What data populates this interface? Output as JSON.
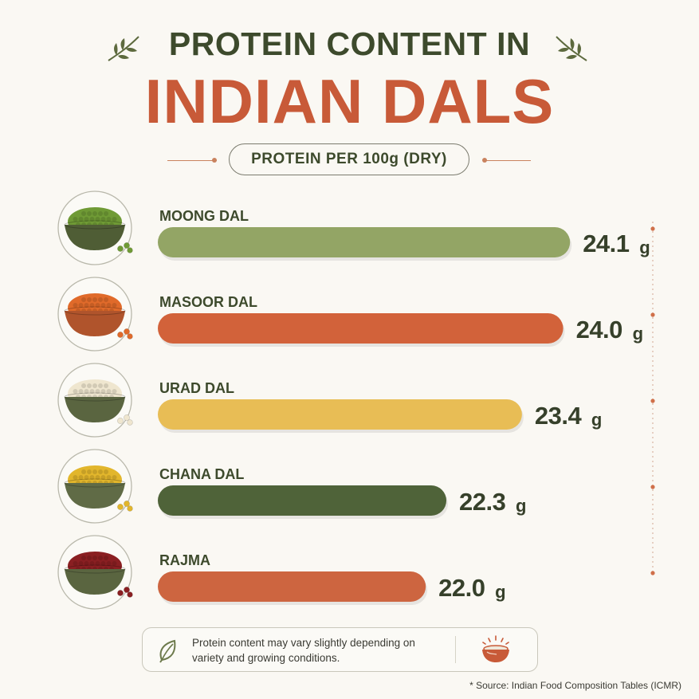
{
  "title_line1": "PROTEIN CONTENT IN",
  "title_line2": "INDIAN DALS",
  "subtitle": "PROTEIN PER 100g (DRY)",
  "chart_data": {
    "type": "bar",
    "orientation": "horizontal",
    "unit": "g",
    "categories": [
      "MOONG DAL",
      "MASOOR DAL",
      "URAD DAL",
      "CHANA DAL",
      "RAJMA"
    ],
    "values": [
      24.1,
      24.0,
      23.4,
      22.3,
      22.0
    ],
    "value_labels": [
      "24.1",
      "24.0",
      "23.4",
      "22.3",
      "22.0"
    ],
    "colors": [
      "#93a565",
      "#d2623a",
      "#e8bd55",
      "#4f6339",
      "#cd6540"
    ],
    "icons": [
      "bowl-green-lentils-icon",
      "bowl-red-lentils-icon",
      "bowl-white-lentils-icon",
      "bowl-yellow-lentils-icon",
      "bowl-kidney-beans-icon"
    ],
    "grain_colors": [
      "#6f9a35",
      "#e06a2a",
      "#efe6cf",
      "#e2b62c",
      "#8a1f22"
    ],
    "bowl_colors": [
      "#4f5d35",
      "#b0542c",
      "#5a6540",
      "#606b46",
      "#5a6540"
    ]
  },
  "footer": {
    "note": "Protein content may vary slightly depending on variety and growing conditions.",
    "leaf_icon": "leaf-outline-icon",
    "bowl_icon": "steaming-bowl-icon"
  },
  "source": "* Source: Indian Food Composition Tables (ICMR)"
}
